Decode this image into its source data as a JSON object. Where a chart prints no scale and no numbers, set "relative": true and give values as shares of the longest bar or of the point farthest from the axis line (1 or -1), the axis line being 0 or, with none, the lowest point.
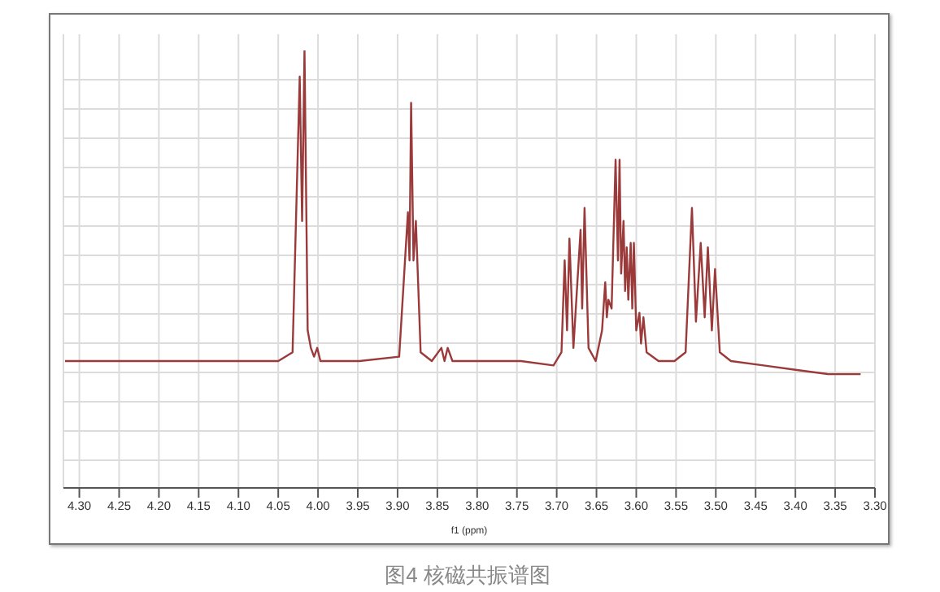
{
  "chart_data": {
    "type": "line",
    "title": "图4 核磁共振谱图",
    "xlabel": "f1 (ppm)",
    "relative": true,
    "grid": true,
    "tick_labels": "x",
    "marker": "none",
    "line_style": "solid",
    "xlim": [
      4.32,
      3.3
    ],
    "xticks": [
      {
        "value": 4.3,
        "label": "4.30"
      },
      {
        "value": 4.25,
        "label": "4.25"
      },
      {
        "value": 4.2,
        "label": "4.20"
      },
      {
        "value": 4.15,
        "label": "4.15"
      },
      {
        "value": 4.1,
        "label": "4.10"
      },
      {
        "value": 4.05,
        "label": "4.05"
      },
      {
        "value": 4.0,
        "label": "4.00"
      },
      {
        "value": 3.95,
        "label": "3.95"
      },
      {
        "value": 3.9,
        "label": "3.90"
      },
      {
        "value": 3.85,
        "label": "3.85"
      },
      {
        "value": 3.8,
        "label": "3.80"
      },
      {
        "value": 3.75,
        "label": "3.75"
      },
      {
        "value": 3.7,
        "label": "3.70"
      },
      {
        "value": 3.65,
        "label": "3.65"
      },
      {
        "value": 3.6,
        "label": "3.60"
      },
      {
        "value": 3.55,
        "label": "3.55"
      },
      {
        "value": 3.5,
        "label": "3.50"
      },
      {
        "value": 3.45,
        "label": "3.45"
      },
      {
        "value": 3.4,
        "label": "3.40"
      },
      {
        "value": 3.35,
        "label": "3.35"
      },
      {
        "value": 3.3,
        "label": "3.30"
      }
    ],
    "series": [
      {
        "color": "#9b3a3a",
        "x": [
          4.318,
          4.233,
          4.152,
          4.05,
          4.032,
          4.023,
          4.02,
          4.017,
          4.013,
          4.009,
          4.005,
          4.001,
          3.997,
          3.948,
          3.898,
          3.887,
          3.885,
          3.883,
          3.88,
          3.877,
          3.871,
          3.857,
          3.845,
          3.841,
          3.837,
          3.831,
          3.818,
          3.786,
          3.745,
          3.704,
          3.694,
          3.69,
          3.687,
          3.684,
          3.679,
          3.67,
          3.668,
          3.665,
          3.66,
          3.651,
          3.643,
          3.639,
          3.637,
          3.635,
          3.631,
          3.626,
          3.623,
          3.621,
          3.619,
          3.616,
          3.614,
          3.612,
          3.61,
          3.607,
          3.605,
          3.603,
          3.6,
          3.596,
          3.594,
          3.591,
          3.587,
          3.572,
          3.552,
          3.538,
          3.53,
          3.525,
          3.519,
          3.514,
          3.51,
          3.505,
          3.501,
          3.495,
          3.481,
          3.44,
          3.4,
          3.359,
          3.318
        ],
        "values": [
          0.29,
          0.29,
          0.29,
          0.29,
          0.31,
          0.94,
          0.61,
          1.0,
          0.36,
          0.32,
          0.3,
          0.32,
          0.29,
          0.29,
          0.3,
          0.63,
          0.52,
          0.88,
          0.52,
          0.61,
          0.31,
          0.29,
          0.32,
          0.29,
          0.32,
          0.29,
          0.29,
          0.29,
          0.29,
          0.28,
          0.31,
          0.52,
          0.36,
          0.57,
          0.32,
          0.59,
          0.41,
          0.64,
          0.32,
          0.29,
          0.36,
          0.47,
          0.39,
          0.43,
          0.41,
          0.75,
          0.52,
          0.75,
          0.49,
          0.61,
          0.45,
          0.55,
          0.43,
          0.56,
          0.41,
          0.56,
          0.36,
          0.4,
          0.33,
          0.39,
          0.31,
          0.29,
          0.29,
          0.31,
          0.64,
          0.38,
          0.56,
          0.39,
          0.55,
          0.36,
          0.5,
          0.31,
          0.29,
          0.28,
          0.27,
          0.26,
          0.26
        ]
      }
    ]
  }
}
